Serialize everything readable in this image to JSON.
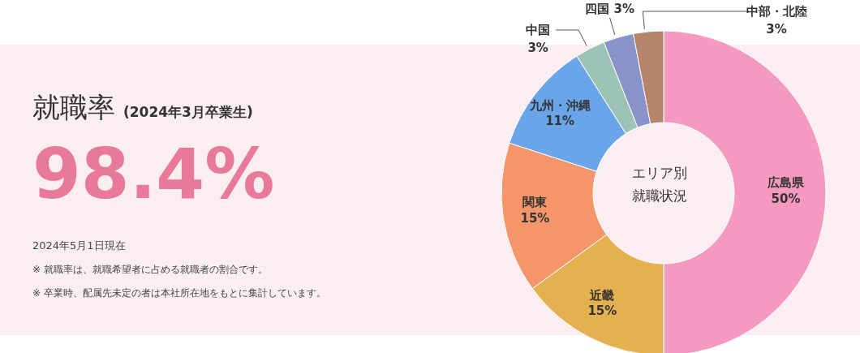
{
  "chart_data": [
    {
      "type": "other",
      "title": "就職率",
      "subtitle": "(2024年3月卒業生)",
      "annotations": [
        "98.4%",
        "2024年5月1日現在",
        "※ 就職率は、就職希望者に占める就職者の割合です。",
        "※ 卒業時、配属先未定の者は本社所在地をもとに集計しています。"
      ]
    },
    {
      "type": "donut",
      "title": "エリア別就職状況",
      "categories": [
        "広島県",
        "近畿",
        "関東",
        "九州・沖縄",
        "中国",
        "四国",
        "中部・北陸"
      ],
      "values": [
        50,
        15,
        15,
        11,
        3,
        3,
        3
      ],
      "value_labels": [
        "50%",
        "15%",
        "15%",
        "11%",
        "3%",
        "3%",
        "3%"
      ],
      "colors": [
        "#f49ac1",
        "#e5b04f",
        "#f5956a",
        "#6aa5ea",
        "#9dc3b4",
        "#8a93c9",
        "#b5856b"
      ]
    }
  ]
}
